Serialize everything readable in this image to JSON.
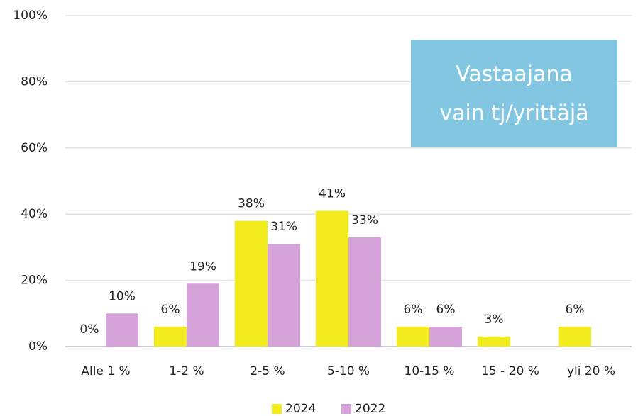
{
  "chart_data": {
    "type": "bar",
    "categories": [
      "Alle 1 %",
      "1-2 %",
      "2-5 %",
      "5-10 %",
      "10-15 %",
      "15 - 20 %",
      "yli 20 %"
    ],
    "series": [
      {
        "name": "2024",
        "color": "#f2ec1c",
        "values": [
          0,
          6,
          38,
          41,
          6,
          3,
          6
        ],
        "value_labels": [
          "0%",
          "6%",
          "38%",
          "41%",
          "6%",
          "3%",
          "6%"
        ]
      },
      {
        "name": "2022",
        "color": "#d6a2da",
        "values": [
          10,
          19,
          31,
          33,
          6,
          null,
          null
        ],
        "value_labels": [
          "10%",
          "19%",
          "31%",
          "33%",
          "6%",
          null,
          null
        ]
      }
    ],
    "ylim": [
      0,
      100
    ],
    "yticks": [
      {
        "value": 0,
        "label": "0%"
      },
      {
        "value": 20,
        "label": "20%"
      },
      {
        "value": 40,
        "label": "40%"
      },
      {
        "value": 60,
        "label": "60%"
      },
      {
        "value": 80,
        "label": "80%"
      },
      {
        "value": 100,
        "label": "100%"
      }
    ],
    "grid": true,
    "legend": "bottom",
    "annotation": [
      "Vastaajana",
      "vain tj/yrittäjä"
    ],
    "annotation_color": "#82c6e2"
  }
}
